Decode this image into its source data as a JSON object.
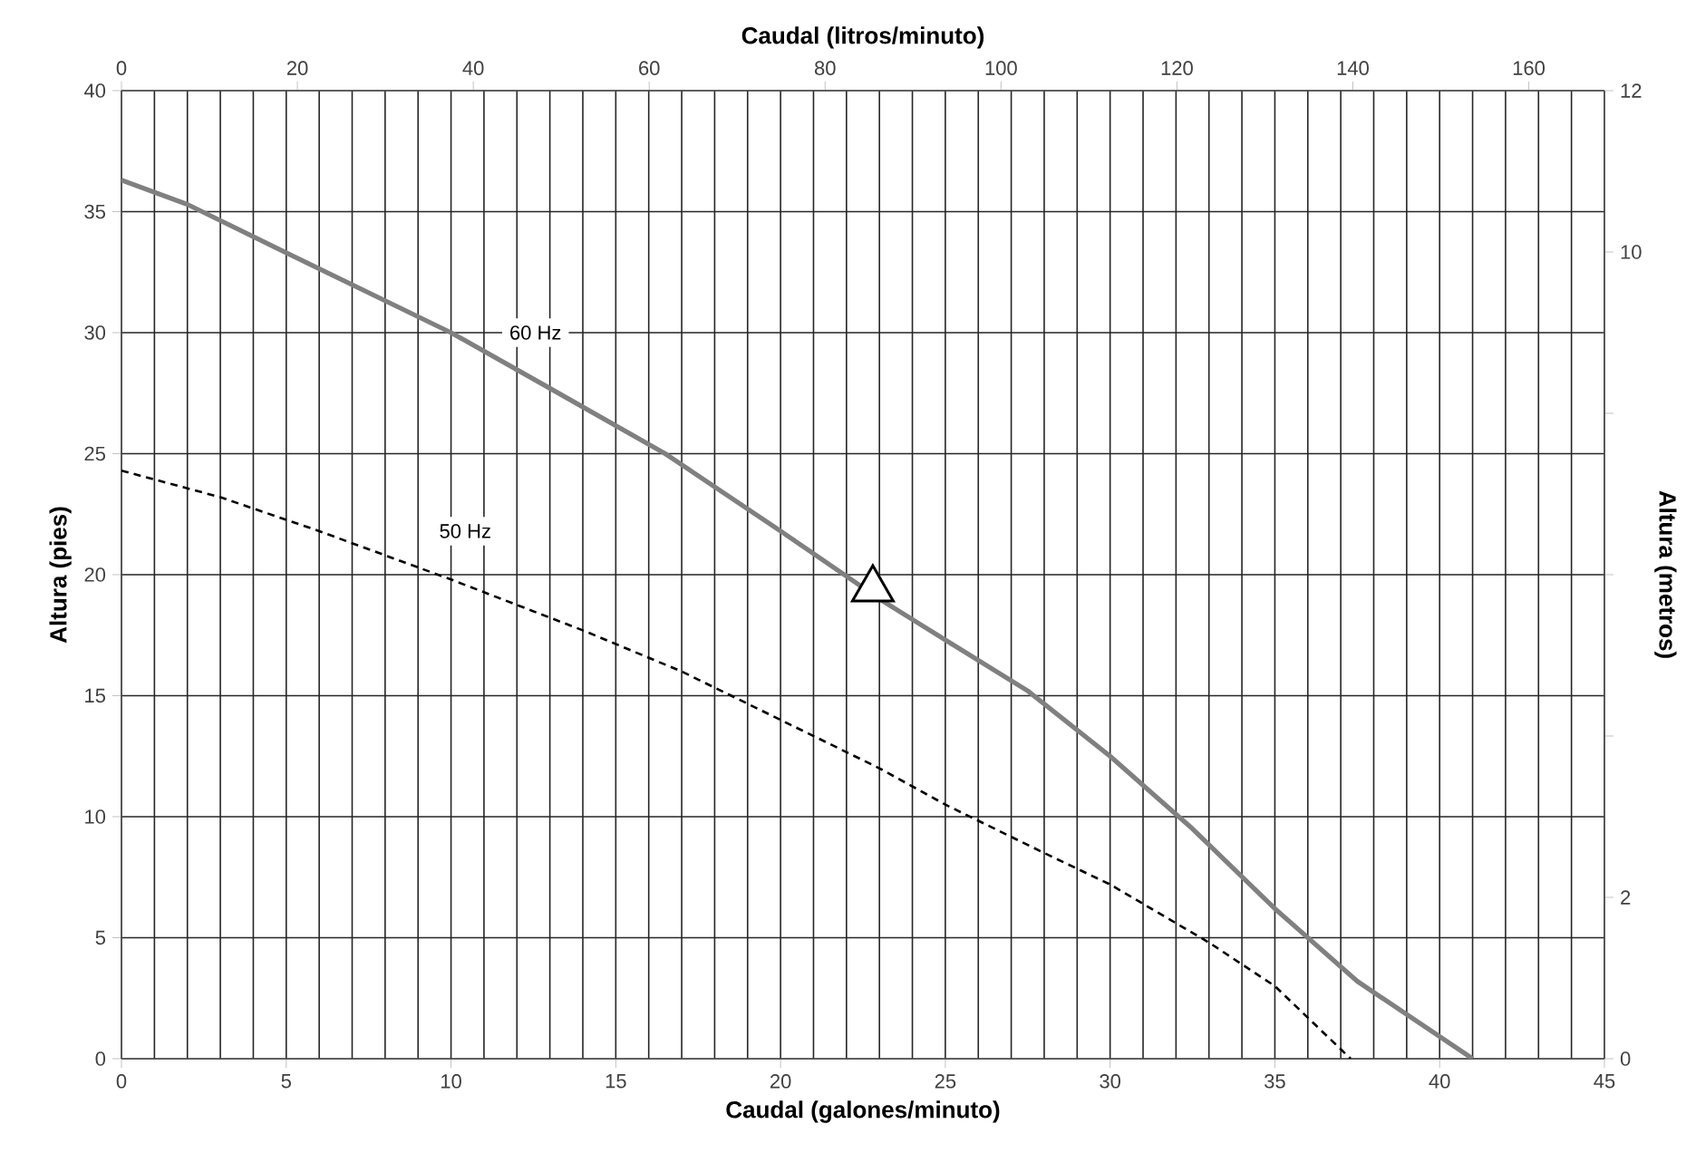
{
  "chart_data": {
    "type": "line",
    "xlabel": "Caudal (galones/minuto)",
    "x2label": "Caudal (litros/minuto)",
    "ylabel": "Altura (pies)",
    "y2label": "Altura (metros)",
    "xlim": [
      0,
      45
    ],
    "xticks": [
      0,
      5,
      10,
      15,
      20,
      25,
      30,
      35,
      40,
      45
    ],
    "ylim": [
      0,
      40
    ],
    "yticks": [
      0,
      5,
      10,
      15,
      20,
      25,
      30,
      35,
      40
    ],
    "x2lim": [
      0,
      168.6
    ],
    "x2ticks": [
      0,
      20,
      40,
      60,
      80,
      100,
      120,
      140,
      160
    ],
    "y2lim": [
      0,
      12
    ],
    "y2ticks": [
      0,
      2,
      {
        "value": 4,
        "label": null
      },
      {
        "value": 6,
        "label": null
      },
      {
        "value": 8,
        "label": null
      },
      10,
      12
    ],
    "grid": true,
    "series": [
      {
        "name": "60 Hz",
        "color": "#808080",
        "line_style": "solid",
        "marker": "none",
        "x": [
          0,
          2,
          5,
          10,
          13,
          16.5,
          20,
          23,
          25,
          27.5,
          30,
          32.5,
          35,
          37.5,
          41
        ],
        "values": [
          36.3,
          35.3,
          33.3,
          30,
          27.7,
          25,
          21.8,
          19,
          17.3,
          15.2,
          12.5,
          9.5,
          6.2,
          3.2,
          0
        ]
      },
      {
        "name": "50 Hz",
        "color": "#000000",
        "line_style": "dashed",
        "marker": "none",
        "x": [
          0,
          3,
          6,
          10,
          14,
          17,
          20,
          23,
          25,
          28,
          30,
          33,
          35,
          37.3
        ],
        "values": [
          24.3,
          23.2,
          21.8,
          19.8,
          17.7,
          16,
          14,
          12,
          10.5,
          8.5,
          7.2,
          4.8,
          3,
          0
        ]
      },
      {
        "type": "scatter",
        "color": "#000000",
        "marker": "triangle",
        "x": [
          22.8
        ],
        "values": [
          19.4
        ]
      }
    ]
  }
}
